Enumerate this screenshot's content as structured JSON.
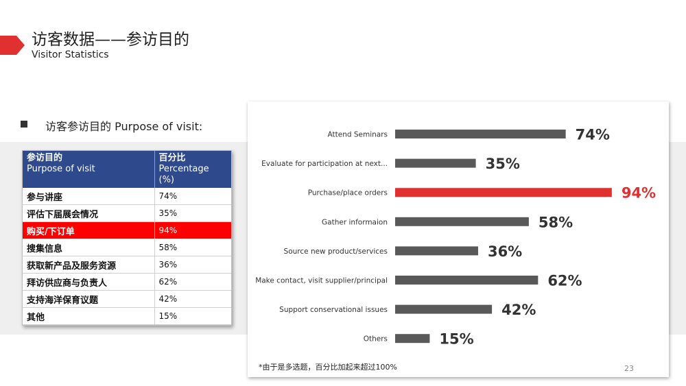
{
  "header": {
    "title": "访客数据——参访目的",
    "subtitle": "Visitor Statistics"
  },
  "section_label": "访客参访目的 Purpose of visit:",
  "table": {
    "headers": [
      {
        "line1": "参访目的",
        "line2": "Purpose of visit"
      },
      {
        "line1": "百分比",
        "line2": "Percentage (%)"
      }
    ],
    "rows": [
      {
        "label": "参与讲座",
        "value": "74%"
      },
      {
        "label": "评估下届展会情况",
        "value": "35%"
      },
      {
        "label": "购买/下订单",
        "value": "94%"
      },
      {
        "label": "搜集信息",
        "value": "58%"
      },
      {
        "label": "获取新产品及服务资源",
        "value": "36%"
      },
      {
        "label": "拜访供应商与负责人",
        "value": "62%"
      },
      {
        "label": "支持海洋保育议题",
        "value": "42%"
      },
      {
        "label": "其他",
        "value": "15%"
      }
    ],
    "highlight_index": 2
  },
  "chart_data": {
    "type": "bar",
    "orientation": "horizontal",
    "categories": [
      "Attend Seminars",
      "Evaluate for participation at next...",
      "Purchase/place orders",
      "Gather informaion",
      "Source new product/services",
      "Make contact, visit supplier/principal",
      "Support conservational issues",
      "Others"
    ],
    "values": [
      74,
      35,
      94,
      58,
      36,
      62,
      42,
      15
    ],
    "value_labels": [
      "74%",
      "35%",
      "94%",
      "58%",
      "36%",
      "62%",
      "42%",
      "15%"
    ],
    "xlim": [
      0,
      100
    ],
    "highlight_index": 2,
    "grid": false,
    "colors": {
      "bar": "#595959",
      "highlight": "#e03030",
      "label": "#333333"
    }
  },
  "colors": {
    "accent_red": "#e03030",
    "table_header": "#2e4a8c",
    "table_highlight": "#ff0000",
    "band": "#efefef"
  },
  "footnote": "*由于是多选题，百分比加起来超过100%",
  "page_number": "23"
}
